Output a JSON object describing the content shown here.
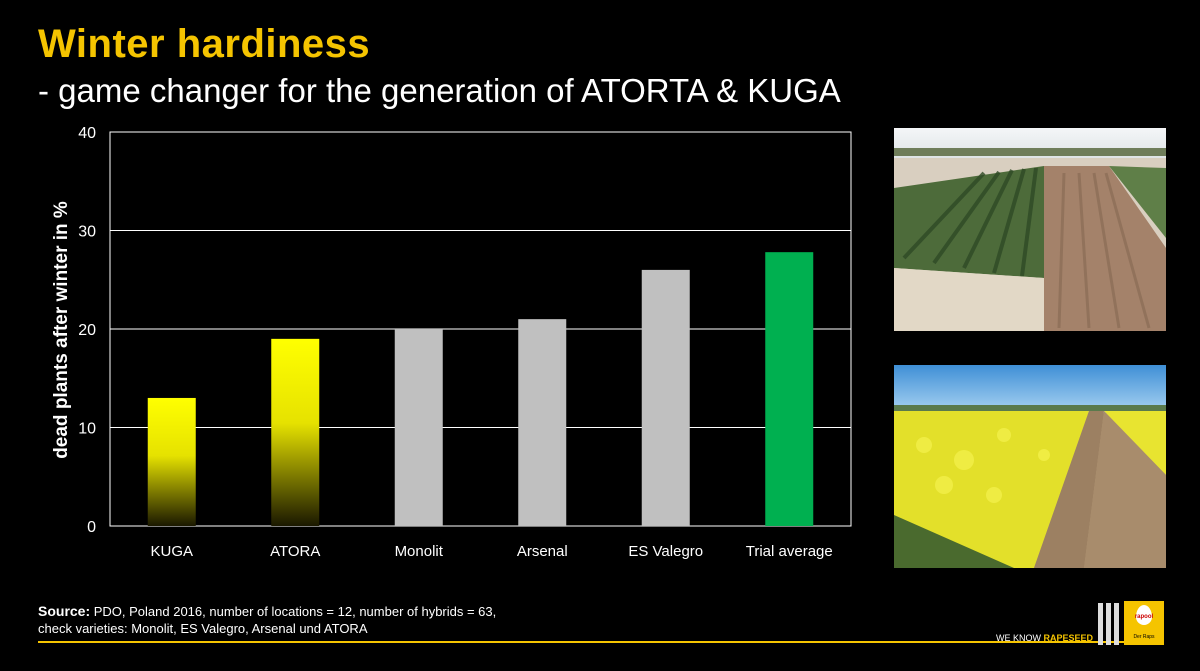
{
  "header": {
    "title": "Winter hardiness",
    "subtitle": "- game changer for the generation of ATORTA & KUGA"
  },
  "chart_data": {
    "type": "bar",
    "title": "",
    "xlabel": "",
    "ylabel": "dead plants after winter in %",
    "ylim": [
      0,
      40
    ],
    "yticks": [
      0,
      10,
      20,
      30,
      40
    ],
    "grid": true,
    "categories": [
      "KUGA",
      "ATORA",
      "Monolit",
      "Arsenal",
      "ES Valegro",
      "Trial average"
    ],
    "values": [
      13,
      19,
      20,
      21,
      26,
      27.8
    ],
    "colors": [
      "yellow-gradient",
      "yellow-gradient",
      "#c0c0c0",
      "#c0c0c0",
      "#c0c0c0",
      "#00b050"
    ]
  },
  "photos": [
    {
      "name": "field-plots-after-winter-photo"
    },
    {
      "name": "flowering-rapeseed-field-photo"
    }
  ],
  "footer": {
    "source_label": "Source:",
    "source_line1": " PDO, Poland 2016, number of locations = 12, number of hybrids = 63,",
    "source_line2": "check varieties: Monolit, ES Valegro, Arsenal und ATORA",
    "tagline_prefix": "WE KNOW ",
    "tagline_highlight": "RAPESEED",
    "logo_brand": "rapool",
    "logo_sub": "Der Raps"
  },
  "colors": {
    "accent": "#f5c400",
    "bar_gray": "#c0c0c0",
    "bar_green": "#00b050",
    "bar_yellow": "#ffff00"
  }
}
